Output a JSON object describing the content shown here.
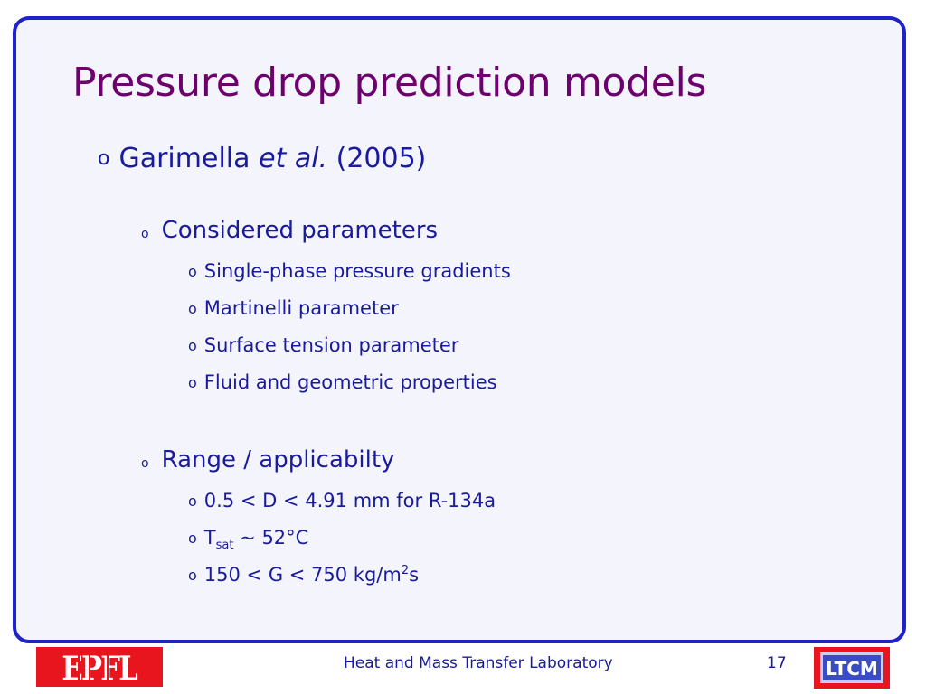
{
  "slide": {
    "title": "Pressure drop prediction models",
    "reference": {
      "author": "Garimella",
      "etal": "et al.",
      "year": "(2005)"
    },
    "section1": {
      "heading": "Considered parameters",
      "items": [
        "Single-phase pressure gradients",
        "Martinelli parameter",
        "Surface tension parameter",
        "Fluid and geometric properties"
      ]
    },
    "section2": {
      "heading": "Range / applicabilty",
      "item1": "0.5 < D < 4.91 mm for R-134a",
      "item2": {
        "symbol": "T",
        "subscript": "sat",
        "rest": " ~ 52°C"
      },
      "item3": {
        "prefix": "150 < G < 750 kg/m",
        "superscript": "2",
        "suffix": "s"
      }
    },
    "bullet": "o"
  },
  "footer": {
    "lab": "Heat and Mass Transfer Laboratory",
    "page": "17",
    "left_logo": "EPFL",
    "right_logo": "LTCM"
  },
  "colors": {
    "title": "#6e006e",
    "text": "#1a1a9c",
    "border": "#1f22c8",
    "logo_red": "#e8141e"
  }
}
